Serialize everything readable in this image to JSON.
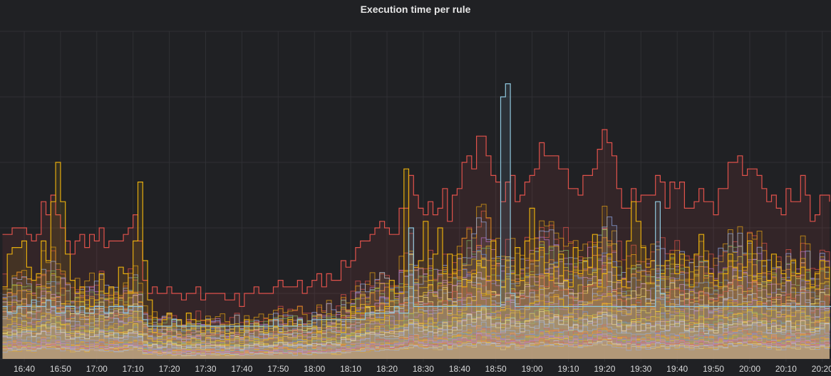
{
  "panel": {
    "title": "Execution time per rule"
  },
  "chart_data": {
    "type": "area",
    "title": "Execution time per rule",
    "xlabel": "",
    "ylabel": "",
    "x_ticks": [
      "16:40",
      "16:50",
      "17:00",
      "17:10",
      "17:20",
      "17:30",
      "17:40",
      "17:50",
      "18:00",
      "18:10",
      "18:20",
      "18:30",
      "18:40",
      "18:50",
      "19:00",
      "19:10",
      "19:20",
      "19:30",
      "19:40",
      "19:50",
      "20:00",
      "20:10",
      "20:20"
    ],
    "x_range": [
      "16:34",
      "20:22"
    ],
    "y_range": [
      0,
      5
    ],
    "grid": true,
    "legend": "none",
    "series_count_estimate": 40,
    "colors": {
      "background": "#202124",
      "grid": "#2f3034",
      "text": "#d8d9da",
      "palette": [
        "#e0524b",
        "#e5ac0e",
        "#8ab8ff",
        "#b877d9",
        "#f2cc0c",
        "#73bf69",
        "#ff9830",
        "#5794f2",
        "#fade2a",
        "#ca95e5",
        "#fff899",
        "#c0d8ff"
      ]
    },
    "highlight_series": [
      {
        "color": "#e0524b",
        "values": [
          1.9,
          1.9,
          2.0,
          2.0,
          2.0,
          1.9,
          1.8,
          1.9,
          2.4,
          2.2,
          2.5,
          2.2,
          2.0,
          1.8,
          1.6,
          1.8,
          1.9,
          1.7,
          1.9,
          1.8,
          2.0,
          1.7,
          1.8,
          1.8,
          1.8,
          1.9,
          2.0,
          2.2,
          1.8,
          1.2,
          1.0,
          1.1,
          1.0,
          1.0,
          1.1,
          1.0,
          1.0,
          0.9,
          1.0,
          1.0,
          1.1,
          0.9,
          1.0,
          1.0,
          1.0,
          1.0,
          0.9,
          0.9,
          1.0,
          0.8,
          1.0,
          1.0,
          1.1,
          1.0,
          1.0,
          1.0,
          1.1,
          1.2,
          1.1,
          1.1,
          1.1,
          1.2,
          1.0,
          1.1,
          1.2,
          1.3,
          1.1,
          1.3,
          1.2,
          1.2,
          1.5,
          1.4,
          1.5,
          1.7,
          1.8,
          1.8,
          1.9,
          2.0,
          2.1,
          2.0,
          1.9,
          1.9,
          2.3,
          2.3,
          2.8,
          2.5,
          2.3,
          2.2,
          2.4,
          2.2,
          2.3,
          2.6,
          2.1,
          2.5,
          2.6,
          3.0,
          3.1,
          2.9,
          3.4,
          3.4,
          3.1,
          2.8,
          2.7,
          2.4,
          2.7,
          2.8,
          2.4,
          2.5,
          2.7,
          2.8,
          2.9,
          3.3,
          3.1,
          3.1,
          3.1,
          2.9,
          2.9,
          2.6,
          2.6,
          2.5,
          2.8,
          2.8,
          2.9,
          3.2,
          3.5,
          3.3,
          3.1,
          2.6,
          2.3,
          2.3,
          2.6,
          2.4,
          2.5,
          2.5,
          2.5,
          2.8,
          2.7,
          2.3,
          2.7,
          2.6,
          2.7,
          2.3,
          2.3,
          2.4,
          2.6,
          2.4,
          2.4,
          2.2,
          2.6,
          2.6,
          3.0,
          3.0,
          3.1,
          2.8,
          2.9,
          2.9,
          2.8,
          2.6,
          2.4,
          2.5,
          2.3,
          2.2,
          2.6,
          2.4,
          2.4,
          2.8,
          2.5,
          2.1,
          2.2,
          2.5,
          2.5,
          2.4
        ]
      },
      {
        "color": "#e5ac0e",
        "values": [
          1.1,
          1.6,
          1.7,
          1.7,
          1.8,
          1.4,
          1.2,
          1.3,
          1.8,
          1.5,
          2.4,
          3.0,
          2.4,
          1.6,
          1.2,
          1.0,
          1.1,
          0.9,
          0.8,
          0.9,
          1.3,
          1.0,
          1.1,
          0.8,
          1.4,
          1.3,
          1.0,
          1.8,
          2.7,
          1.5,
          0.9,
          0.4,
          0.5,
          0.6,
          0.7,
          0.5,
          0.6,
          0.5,
          0.7,
          0.6,
          0.5,
          0.4,
          0.6,
          0.4,
          0.5,
          0.5,
          0.3,
          0.4,
          0.5,
          0.4,
          0.6,
          0.5,
          0.5,
          0.5,
          0.4,
          0.6,
          0.5,
          0.4,
          0.5,
          0.6,
          0.5,
          0.6,
          0.5,
          0.5,
          0.5,
          0.4,
          0.6,
          0.5,
          0.5,
          0.6,
          0.4,
          0.6,
          0.8,
          0.7,
          0.7,
          0.8,
          0.8,
          0.6,
          0.6,
          0.8,
          1.2,
          1.0,
          1.0,
          2.9,
          1.6,
          1.4,
          1.5,
          2.1,
          1.2,
          1.6,
          2.0,
          1.3,
          1.6,
          1.3,
          1.6,
          1.1,
          1.2,
          1.3,
          1.5,
          1.4,
          1.2,
          1.8,
          1.2,
          1.1,
          1.5,
          1.3,
          1.7,
          1.2,
          1.8,
          2.3,
          1.5,
          1.7,
          1.3,
          1.2,
          1.4,
          1.6,
          1.2,
          1.1,
          1.7,
          1.3,
          1.5,
          1.4,
          1.9,
          1.1,
          1.3,
          1.6,
          1.4,
          1.2,
          1.1,
          1.8,
          2.4,
          2.1,
          1.7,
          1.4,
          1.5,
          1.2,
          1.3,
          1.5,
          1.6,
          1.3,
          1.6,
          1.4,
          1.1,
          1.6,
          1.9,
          1.5,
          1.3,
          1.2,
          1.1,
          1.3,
          1.6,
          1.4,
          1.2,
          1.4,
          1.8,
          1.2,
          1.3,
          1.5,
          1.2,
          1.6,
          1.4,
          1.3,
          1.2,
          1.5,
          1.3,
          1.4,
          1.2,
          1.1,
          1.3,
          1.5,
          1.4,
          1.2
        ]
      },
      {
        "color": "#8fc7dd",
        "values": [
          0.8,
          0.7,
          0.7,
          0.8,
          0.8,
          0.8,
          0.9,
          0.8,
          0.8,
          0.9,
          0.8,
          0.7,
          0.7,
          0.8,
          0.8,
          0.7,
          0.8,
          0.7,
          0.7,
          0.8,
          0.8,
          0.7,
          0.8,
          0.8,
          0.8,
          0.7,
          0.8,
          0.8,
          0.8,
          0.6,
          0.5,
          0.5,
          0.5,
          0.5,
          0.5,
          0.6,
          0.5,
          0.5,
          0.5,
          0.5,
          0.5,
          0.5,
          0.5,
          0.5,
          0.5,
          0.5,
          0.5,
          0.5,
          0.5,
          0.5,
          0.5,
          0.5,
          0.5,
          0.5,
          0.5,
          0.5,
          0.6,
          0.5,
          0.5,
          0.5,
          0.5,
          0.6,
          0.5,
          0.5,
          0.6,
          0.6,
          0.6,
          0.6,
          0.6,
          0.6,
          0.6,
          0.6,
          0.6,
          0.6,
          0.6,
          0.7,
          0.7,
          0.7,
          0.7,
          0.7,
          0.7,
          0.8,
          0.7,
          0.7,
          2.0,
          0.8,
          0.8,
          0.8,
          0.8,
          0.8,
          0.8,
          0.8,
          0.8,
          0.8,
          0.8,
          0.8,
          0.8,
          0.8,
          0.8,
          0.8,
          0.8,
          0.8,
          0.8,
          4.0,
          4.2,
          1.0,
          0.8,
          0.8,
          0.8,
          0.8,
          0.8,
          0.8,
          0.8,
          0.8,
          0.8,
          0.8,
          0.8,
          0.8,
          0.8,
          0.8,
          0.8,
          0.8,
          0.8,
          0.8,
          0.8,
          0.8,
          0.8,
          0.8,
          0.8,
          0.8,
          0.8,
          0.8,
          0.8,
          0.8,
          0.8,
          2.4,
          1.0,
          0.8,
          0.8,
          0.8,
          0.8,
          0.8,
          0.8,
          0.8,
          0.8,
          0.8,
          0.8,
          0.8,
          0.8,
          0.8,
          0.8,
          0.8,
          0.8,
          0.8,
          0.8,
          0.8,
          0.8,
          0.8,
          0.8,
          0.8,
          0.8,
          0.8,
          0.8,
          0.8,
          0.8,
          0.8,
          0.8,
          0.8,
          0.8,
          0.8,
          0.8,
          0.8,
          0.8,
          0.8
        ]
      }
    ]
  }
}
